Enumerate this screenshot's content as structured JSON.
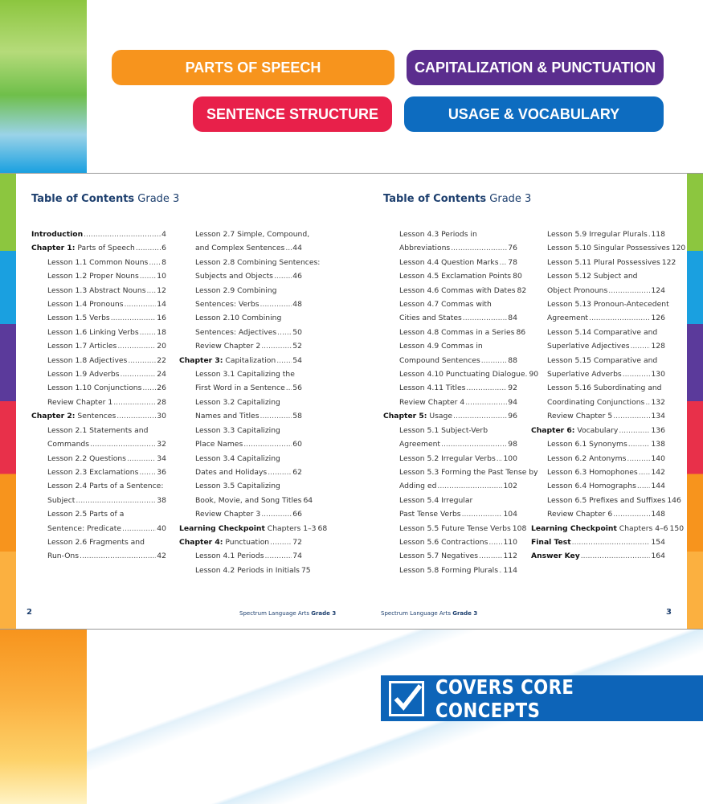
{
  "categories": [
    {
      "label": "PARTS OF SPEECH",
      "color": "#f7941d"
    },
    {
      "label": "CAPITALIZATION & PUNCTUATION",
      "color": "#5b2d8e"
    },
    {
      "label": "SENTENCE STRUCTURE",
      "color": "#e8204a"
    },
    {
      "label": "USAGE & VOCABULARY",
      "color": "#0d6cc0"
    }
  ],
  "left_page": {
    "title_bold": "Table of Contents",
    "title_rest": " Grade 3",
    "folio": "2",
    "footer_plain": "Spectrum Language Arts ",
    "footer_bold": "Grade 3"
  },
  "right_page": {
    "title_bold": "Table of Contents",
    "title_rest": " Grade 3",
    "folio": "3",
    "footer_plain": "Spectrum Language Arts ",
    "footer_bold": "Grade 3"
  },
  "columns": [
    [
      {
        "b": "Introduction",
        "t": "",
        "p": "4",
        "l": 1
      },
      {
        "b": "Chapter 1:",
        "t": " Parts of Speech",
        "p": "6",
        "l": 1
      },
      {
        "b": "",
        "t": "Lesson 1.1 Common Nouns",
        "p": "8",
        "l": 2
      },
      {
        "b": "",
        "t": "Lesson 1.2 Proper Nouns",
        "p": "10",
        "l": 2
      },
      {
        "b": "",
        "t": "Lesson 1.3 Abstract Nouns",
        "p": "12",
        "l": 2
      },
      {
        "b": "",
        "t": "Lesson 1.4 Pronouns",
        "p": "14",
        "l": 2
      },
      {
        "b": "",
        "t": "Lesson 1.5 Verbs",
        "p": "16",
        "l": 2
      },
      {
        "b": "",
        "t": "Lesson 1.6 Linking Verbs",
        "p": "18",
        "l": 2
      },
      {
        "b": "",
        "t": "Lesson 1.7 Articles",
        "p": "20",
        "l": 2
      },
      {
        "b": "",
        "t": "Lesson 1.8 Adjectives",
        "p": "22",
        "l": 2
      },
      {
        "b": "",
        "t": "Lesson 1.9 Adverbs",
        "p": "24",
        "l": 2
      },
      {
        "b": "",
        "t": "Lesson 1.10 Conjunctions",
        "p": "26",
        "l": 2
      },
      {
        "b": "",
        "t": "Review Chapter 1",
        "p": "28",
        "l": 2
      },
      {
        "b": "Chapter 2:",
        "t": " Sentences",
        "p": "30",
        "l": 1
      },
      {
        "b": "",
        "t": "Lesson 2.1 Statements and",
        "p": "",
        "l": 2
      },
      {
        "b": "",
        "t": "Commands",
        "p": "32",
        "l": 2
      },
      {
        "b": "",
        "t": "Lesson 2.2 Questions",
        "p": "34",
        "l": 2
      },
      {
        "b": "",
        "t": "Lesson 2.3 Exclamations",
        "p": "36",
        "l": 2
      },
      {
        "b": "",
        "t": "Lesson 2.4 Parts of a Sentence:",
        "p": "",
        "l": 2
      },
      {
        "b": "",
        "t": "Subject",
        "p": "38",
        "l": 2
      },
      {
        "b": "",
        "t": "Lesson 2.5 Parts of a",
        "p": "",
        "l": 2
      },
      {
        "b": "",
        "t": "Sentence: Predicate",
        "p": "40",
        "l": 2
      },
      {
        "b": "",
        "t": "Lesson 2.6 Fragments and",
        "p": "",
        "l": 2
      },
      {
        "b": "",
        "t": "Run-Ons",
        "p": "42",
        "l": 2
      }
    ],
    [
      {
        "b": "",
        "t": "Lesson 2.7 Simple, Compound,",
        "p": "",
        "l": 2
      },
      {
        "b": "",
        "t": "and Complex Sentences",
        "p": "44",
        "l": 2
      },
      {
        "b": "",
        "t": "Lesson 2.8 Combining Sentences:",
        "p": "",
        "l": 2
      },
      {
        "b": "",
        "t": "Subjects and Objects",
        "p": "46",
        "l": 2
      },
      {
        "b": "",
        "t": "Lesson 2.9 Combining",
        "p": "",
        "l": 2
      },
      {
        "b": "",
        "t": "Sentences: Verbs",
        "p": "48",
        "l": 2
      },
      {
        "b": "",
        "t": "Lesson 2.10 Combining",
        "p": "",
        "l": 2
      },
      {
        "b": "",
        "t": "Sentences: Adjectives",
        "p": "50",
        "l": 2
      },
      {
        "b": "",
        "t": "Review Chapter 2",
        "p": "52",
        "l": 2
      },
      {
        "b": "Chapter 3:",
        "t": " Capitalization",
        "p": "54",
        "l": 1
      },
      {
        "b": "",
        "t": "Lesson 3.1 Capitalizing the",
        "p": "",
        "l": 2
      },
      {
        "b": "",
        "t": "First Word in a Sentence",
        "p": "56",
        "l": 2
      },
      {
        "b": "",
        "t": "Lesson 3.2 Capitalizing",
        "p": "",
        "l": 2
      },
      {
        "b": "",
        "t": "Names and Titles",
        "p": "58",
        "l": 2
      },
      {
        "b": "",
        "t": "Lesson 3.3 Capitalizing",
        "p": "",
        "l": 2
      },
      {
        "b": "",
        "t": "Place Names",
        "p": "60",
        "l": 2
      },
      {
        "b": "",
        "t": "Lesson 3.4 Capitalizing",
        "p": "",
        "l": 2
      },
      {
        "b": "",
        "t": "Dates and Holidays",
        "p": "62",
        "l": 2
      },
      {
        "b": "",
        "t": "Lesson 3.5 Capitalizing",
        "p": "",
        "l": 2
      },
      {
        "b": "",
        "t": "Book, Movie, and Song Titles",
        "p": "64",
        "l": 2
      },
      {
        "b": "",
        "t": "Review Chapter 3",
        "p": "66",
        "l": 2
      },
      {
        "b": "Learning Checkpoint",
        "t": " Chapters 1–3",
        "p": "68",
        "l": 1
      },
      {
        "b": "Chapter 4:",
        "t": " Punctuation",
        "p": "72",
        "l": 1
      },
      {
        "b": "",
        "t": "Lesson 4.1 Periods",
        "p": "74",
        "l": 2
      },
      {
        "b": "",
        "t": "Lesson 4.2 Periods in Initials",
        "p": "75",
        "l": 2
      }
    ],
    [
      {
        "b": "",
        "t": "Lesson 4.3 Periods in",
        "p": "",
        "l": 2
      },
      {
        "b": "",
        "t": "Abbreviations",
        "p": "76",
        "l": 2
      },
      {
        "b": "",
        "t": "Lesson 4.4 Question Marks",
        "p": "78",
        "l": 2
      },
      {
        "b": "",
        "t": "Lesson 4.5 Exclamation Points",
        "p": "80",
        "l": 2
      },
      {
        "b": "",
        "t": "Lesson 4.6 Commas with Dates",
        "p": "82",
        "l": 2
      },
      {
        "b": "",
        "t": "Lesson 4.7 Commas with",
        "p": "",
        "l": 2
      },
      {
        "b": "",
        "t": "Cities and States",
        "p": "84",
        "l": 2
      },
      {
        "b": "",
        "t": "Lesson 4.8 Commas in a Series",
        "p": "86",
        "l": 2
      },
      {
        "b": "",
        "t": "Lesson 4.9 Commas in",
        "p": "",
        "l": 2
      },
      {
        "b": "",
        "t": "Compound Sentences",
        "p": "88",
        "l": 2
      },
      {
        "b": "",
        "t": "Lesson 4.10 Punctuating Dialogue.",
        "p": "90",
        "l": 2
      },
      {
        "b": "",
        "t": "Lesson 4.11 Titles",
        "p": "92",
        "l": 2
      },
      {
        "b": "",
        "t": "Review Chapter 4",
        "p": "94",
        "l": 2
      },
      {
        "b": "Chapter 5:",
        "t": " Usage",
        "p": "96",
        "l": 1
      },
      {
        "b": "",
        "t": "Lesson 5.1 Subject-Verb",
        "p": "",
        "l": 2
      },
      {
        "b": "",
        "t": "Agreement",
        "p": "98",
        "l": 2
      },
      {
        "b": "",
        "t": "Lesson 5.2 Irregular Verbs",
        "p": "100",
        "l": 2
      },
      {
        "b": "",
        "t": "Lesson 5.3 Forming the Past Tense by",
        "p": "",
        "l": 2
      },
      {
        "b": "",
        "t": "Adding ed",
        "p": "102",
        "l": 2
      },
      {
        "b": "",
        "t": "Lesson 5.4 Irregular",
        "p": "",
        "l": 2
      },
      {
        "b": "",
        "t": "Past Tense Verbs",
        "p": "104",
        "l": 2
      },
      {
        "b": "",
        "t": "Lesson 5.5 Future Tense Verbs",
        "p": "108",
        "l": 2
      },
      {
        "b": "",
        "t": "Lesson 5.6 Contractions",
        "p": "110",
        "l": 2
      },
      {
        "b": "",
        "t": "Lesson 5.7 Negatives",
        "p": "112",
        "l": 2
      },
      {
        "b": "",
        "t": "Lesson 5.8 Forming Plurals",
        "p": "114",
        "l": 2
      }
    ],
    [
      {
        "b": "",
        "t": "Lesson 5.9 Irregular Plurals",
        "p": "118",
        "l": 2
      },
      {
        "b": "",
        "t": "Lesson 5.10 Singular Possessives",
        "p": "120",
        "l": 2
      },
      {
        "b": "",
        "t": "Lesson 5.11 Plural Possessives",
        "p": "122",
        "l": 2
      },
      {
        "b": "",
        "t": "Lesson 5.12 Subject and",
        "p": "",
        "l": 2
      },
      {
        "b": "",
        "t": "Object Pronouns",
        "p": "124",
        "l": 2
      },
      {
        "b": "",
        "t": "Lesson 5.13 Pronoun-Antecedent",
        "p": "",
        "l": 2
      },
      {
        "b": "",
        "t": "Agreement",
        "p": "126",
        "l": 2
      },
      {
        "b": "",
        "t": "Lesson 5.14 Comparative and",
        "p": "",
        "l": 2
      },
      {
        "b": "",
        "t": "Superlative Adjectives",
        "p": "128",
        "l": 2
      },
      {
        "b": "",
        "t": "Lesson 5.15 Comparative and",
        "p": "",
        "l": 2
      },
      {
        "b": "",
        "t": "Superlative Adverbs",
        "p": "130",
        "l": 2
      },
      {
        "b": "",
        "t": "Lesson 5.16 Subordinating and",
        "p": "",
        "l": 2
      },
      {
        "b": "",
        "t": "Coordinating Conjunctions",
        "p": "132",
        "l": 2
      },
      {
        "b": "",
        "t": "Review Chapter 5",
        "p": "134",
        "l": 2
      },
      {
        "b": "Chapter 6:",
        "t": " Vocabulary",
        "p": "136",
        "l": 1
      },
      {
        "b": "",
        "t": "Lesson 6.1 Synonyms",
        "p": "138",
        "l": 2
      },
      {
        "b": "",
        "t": "Lesson 6.2 Antonyms",
        "p": "140",
        "l": 2
      },
      {
        "b": "",
        "t": "Lesson 6.3 Homophones",
        "p": "142",
        "l": 2
      },
      {
        "b": "",
        "t": "Lesson 6.4 Homographs",
        "p": "144",
        "l": 2
      },
      {
        "b": "",
        "t": "Lesson 6.5 Prefixes and Suffixes",
        "p": "146",
        "l": 2
      },
      {
        "b": "",
        "t": "Review Chapter 6",
        "p": "148",
        "l": 2
      },
      {
        "b": "Learning Checkpoint",
        "t": " Chapters 4–6",
        "p": "150",
        "l": 1
      },
      {
        "b": "Final Test",
        "t": "",
        "p": "154",
        "l": 1
      },
      {
        "b": "Answer Key",
        "t": "",
        "p": "164",
        "l": 1
      }
    ]
  ],
  "banner": {
    "label": "COVERS CORE CONCEPTS",
    "icon": "checkbox-check-icon",
    "color": "#0d64b8"
  }
}
